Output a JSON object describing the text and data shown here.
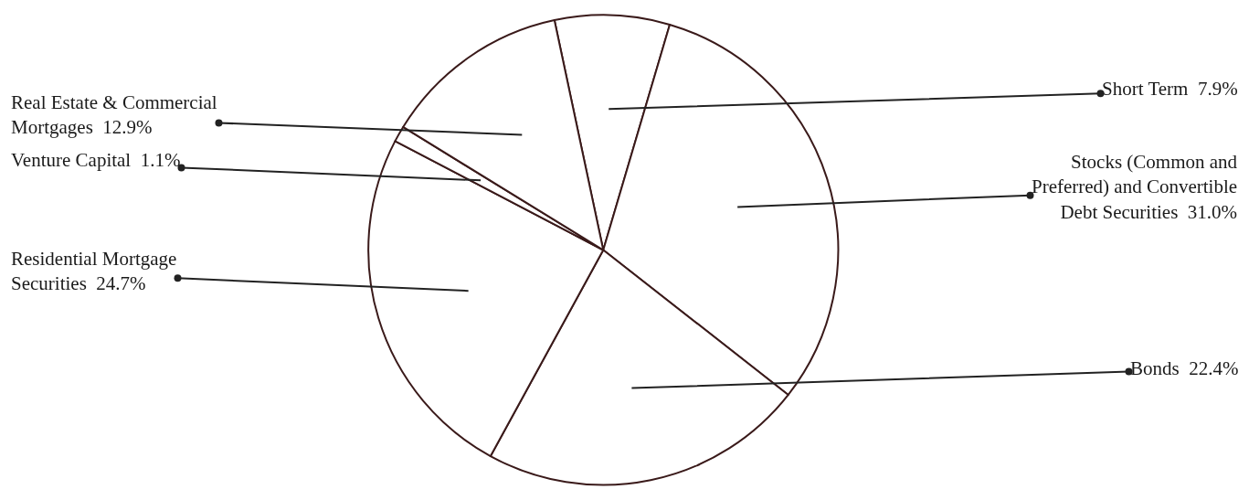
{
  "chart_data": {
    "type": "pie",
    "categories": [
      "Short Term",
      "Stocks (Common and Preferred) and Convertible Debt Securities",
      "Bonds",
      "Residential Mortgage Securities",
      "Venture Capital",
      "Real Estate & Commercial Mortgages"
    ],
    "values": [
      7.9,
      31.0,
      22.4,
      24.7,
      1.1,
      12.9
    ],
    "value_labels": [
      "7.9%",
      "31.0%",
      "22.4%",
      "24.7%",
      "1.1%",
      "12.9%"
    ],
    "colors": [
      "#ffffff",
      "#ffffff",
      "#ffffff",
      "#ffffff",
      "#ffffff",
      "#ffffff"
    ],
    "legend": false
  }
}
